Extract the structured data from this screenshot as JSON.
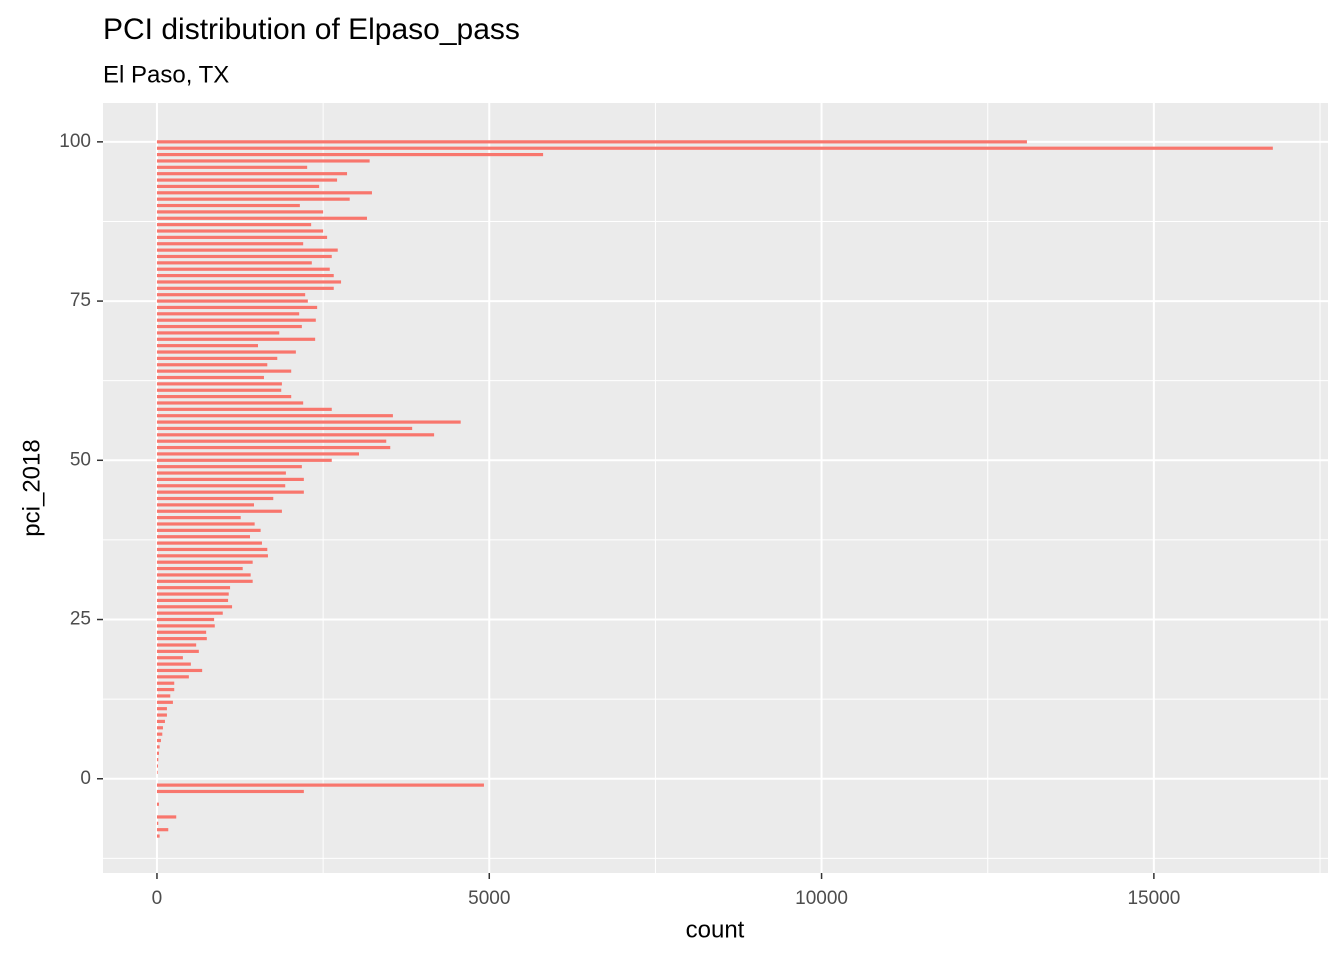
{
  "chart_data": {
    "type": "bar",
    "orientation": "horizontal",
    "title": "PCI distribution of Elpaso_pass",
    "subtitle": "El Paso, TX",
    "x_label": "count",
    "y_label": "pci_2018",
    "color": "#f8766d",
    "y": [
      -9,
      -8,
      -7,
      -6,
      -4,
      -2,
      -1,
      1,
      2,
      3,
      4,
      5,
      6,
      7,
      8,
      9,
      10,
      11,
      12,
      13,
      14,
      15,
      16,
      17,
      18,
      19,
      20,
      21,
      22,
      23,
      24,
      25,
      26,
      27,
      28,
      29,
      30,
      31,
      32,
      33,
      34,
      35,
      36,
      37,
      38,
      39,
      40,
      41,
      42,
      43,
      44,
      45,
      46,
      47,
      48,
      49,
      50,
      51,
      52,
      53,
      54,
      55,
      56,
      57,
      58,
      59,
      60,
      61,
      62,
      63,
      64,
      65,
      66,
      67,
      68,
      69,
      70,
      71,
      72,
      73,
      74,
      75,
      76,
      77,
      78,
      79,
      80,
      81,
      82,
      83,
      84,
      85,
      86,
      87,
      88,
      89,
      90,
      91,
      92,
      93,
      94,
      95,
      96,
      97,
      98,
      99,
      100
    ],
    "values": [
      40,
      170,
      20,
      290,
      30,
      2210,
      4920,
      10,
      15,
      20,
      30,
      40,
      60,
      80,
      90,
      120,
      150,
      150,
      240,
      200,
      260,
      260,
      480,
      680,
      510,
      390,
      630,
      590,
      750,
      740,
      870,
      860,
      990,
      1130,
      1070,
      1080,
      1100,
      1440,
      1410,
      1290,
      1440,
      1670,
      1660,
      1580,
      1400,
      1560,
      1470,
      1260,
      1880,
      1460,
      1750,
      2210,
      1930,
      2210,
      1940,
      2180,
      2630,
      3040,
      3510,
      3450,
      4170,
      3840,
      4570,
      3550,
      2630,
      2200,
      2020,
      1870,
      1880,
      1610,
      2020,
      1660,
      1810,
      2090,
      1520,
      2380,
      1840,
      2180,
      2390,
      2140,
      2410,
      2270,
      2230,
      2660,
      2770,
      2660,
      2600,
      2330,
      2630,
      2720,
      2200,
      2560,
      2500,
      2320,
      3160,
      2500,
      2150,
      2900,
      3235,
      2440,
      2710,
      2860,
      2260,
      3200,
      5810,
      16790,
      13090
    ],
    "xlim": [
      -812,
      17620
    ],
    "ylim": [
      -14.8,
      106.1
    ],
    "xticks": [
      0,
      5000,
      10000,
      15000
    ],
    "yticks": [
      0,
      25,
      50,
      75,
      100
    ],
    "grid": true,
    "minor_grid": true
  }
}
